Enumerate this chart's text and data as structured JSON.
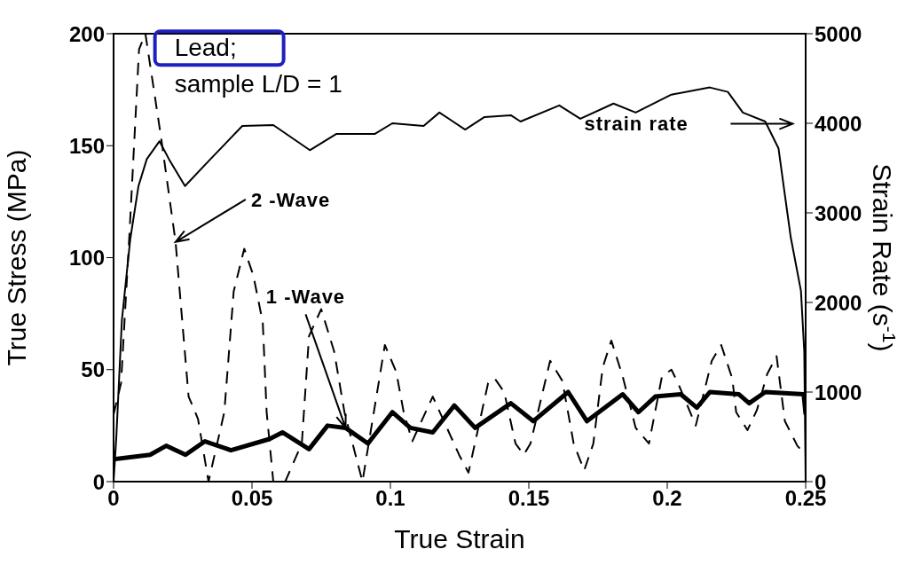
{
  "chart_data": {
    "type": "line",
    "xlabel": "True Strain",
    "ylabel": "True Stress (MPa)",
    "y2label": "Strain Rate (s$^{-1}$)",
    "xlim": [
      0,
      0.25
    ],
    "xticks": [
      0,
      0.05,
      0.1,
      0.15,
      0.2,
      0.25
    ],
    "ylim": [
      0,
      200
    ],
    "yticks": [
      0,
      50,
      100,
      150,
      200
    ],
    "y2lim": [
      0,
      5000
    ],
    "y2ticks": [
      0,
      1000,
      2000,
      3000,
      4000,
      5000
    ],
    "marker": "none",
    "annotations": [
      "Lead;",
      "sample L/D = 1",
      "strain rate",
      {
        "text": "2 -Wave",
        "x": 0.0224,
        "y": 107
      },
      {
        "text": "1 -Wave",
        "x": 0.0838,
        "y": 24
      }
    ],
    "series": [
      {
        "color": "#000000",
        "axis": "y2",
        "line_style": "solid",
        "x": [
          0,
          0.001,
          0.003,
          0.006,
          0.009,
          0.012,
          0.0166,
          0.02,
          0.0258,
          0.035,
          0.0465,
          0.0577,
          0.0709,
          0.0804,
          0.0943,
          0.1007,
          0.112,
          0.1177,
          0.127,
          0.134,
          0.1435,
          0.147,
          0.161,
          0.1686,
          0.1806,
          0.1886,
          0.2015,
          0.2154,
          0.2219,
          0.2273,
          0.2354,
          0.2402,
          0.2425,
          0.2446,
          0.2483,
          0.2495,
          0.25
        ],
        "values": [
          0,
          500,
          1800,
          2700,
          3300,
          3600,
          3800,
          3600,
          3300,
          3600,
          3970,
          3980,
          3700,
          3880,
          3880,
          4000,
          3970,
          4120,
          3930,
          4070,
          4090,
          4020,
          4200,
          4050,
          4220,
          4120,
          4320,
          4400,
          4350,
          4120,
          4020,
          3720,
          3200,
          2730,
          2130,
          1450,
          0
        ]
      },
      {
        "color": "#000000",
        "line_style": "solid",
        "x": [
          0,
          0.0132,
          0.019,
          0.026,
          0.033,
          0.0424,
          0.0563,
          0.061,
          0.0706,
          0.0773,
          0.0838,
          0.0919,
          0.1007,
          0.1072,
          0.1153,
          0.1231,
          0.1306,
          0.1435,
          0.1516,
          0.1642,
          0.171,
          0.1839,
          0.1896,
          0.1957,
          0.2049,
          0.2107,
          0.2154,
          0.2259,
          0.2296,
          0.2354,
          0.2493,
          0.25
        ],
        "values": [
          10,
          12,
          16,
          12,
          18,
          14,
          19,
          22,
          14.5,
          25,
          24,
          17,
          31,
          24,
          22,
          34,
          24,
          35,
          27,
          40,
          27,
          39,
          31,
          38,
          39,
          33,
          40,
          39,
          35,
          40,
          39,
          30
        ]
      },
      {
        "color": "#000000",
        "line_style": "dashed",
        "x": [
          0,
          0.0027,
          0.0058,
          0.0092,
          0.0115,
          0.017,
          0.0224,
          0.0271,
          0.0305,
          0.0343,
          0.04,
          0.0434,
          0.0472,
          0.0505,
          0.0539,
          0.0553,
          0.0577,
          0.062,
          0.068,
          0.0706,
          0.075,
          0.0797,
          0.0834,
          0.0899,
          0.098,
          0.1021,
          0.1048,
          0.1079,
          0.1153,
          0.1248,
          0.1282,
          0.1353,
          0.1377,
          0.1411,
          0.1452,
          0.1482,
          0.1506,
          0.1577,
          0.1621,
          0.1662,
          0.17,
          0.1733,
          0.1767,
          0.1798,
          0.1839,
          0.1886,
          0.1934,
          0.1981,
          0.2015,
          0.2039,
          0.2103,
          0.2161,
          0.2195,
          0.2235,
          0.2249,
          0.229,
          0.2324,
          0.2361,
          0.2395,
          0.2425,
          0.247,
          0.25
        ],
        "values": [
          30,
          44,
          112,
          193,
          200,
          155,
          107,
          38,
          28,
          0,
          31,
          85,
          104,
          92,
          71,
          31,
          0,
          0,
          17,
          65,
          77,
          58,
          31,
          0,
          61,
          49,
          31,
          18,
          38,
          12,
          4,
          44,
          46,
          40,
          17,
          12,
          17,
          54,
          45,
          17,
          5,
          17,
          51,
          63,
          47,
          24,
          17,
          47,
          50,
          44,
          25,
          54,
          61,
          46,
          31,
          23,
          32,
          48,
          56,
          27,
          16,
          12
        ]
      }
    ]
  }
}
